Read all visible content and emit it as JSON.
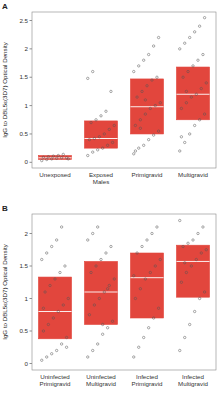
{
  "chart_data": [
    {
      "type": "box",
      "title": "A",
      "y_label": "IgG to DBL5ε(3D7) Optical Density",
      "categories": [
        "Unexposed",
        "Exposed Males",
        "Primigravid",
        "Multigravid"
      ],
      "color": "#e2463d",
      "ylim": [
        -0.1,
        2.65
      ],
      "yticks": [
        0,
        0.5,
        1,
        1.5,
        2,
        2.5
      ],
      "boxes": [
        {
          "q1": 0.05,
          "median": 0.08,
          "q3": 0.12
        },
        {
          "q1": 0.25,
          "median": 0.42,
          "q3": 0.73
        },
        {
          "q1": 0.5,
          "median": 0.98,
          "q3": 1.47
        },
        {
          "q1": 0.75,
          "median": 1.2,
          "q3": 1.68
        }
      ],
      "points": [
        [
          0.03,
          0.05,
          0.06,
          0.07,
          0.08,
          0.08,
          0.09,
          0.1,
          0.11,
          0.12,
          0.14,
          0.06
        ],
        [
          0.12,
          0.18,
          0.22,
          0.25,
          0.3,
          0.35,
          0.4,
          0.42,
          0.45,
          0.5,
          0.58,
          0.65,
          0.7,
          0.75,
          0.82,
          0.9,
          1.25,
          1.48,
          1.6
        ],
        [
          0.15,
          0.25,
          0.3,
          0.4,
          0.48,
          0.55,
          0.65,
          0.75,
          0.85,
          0.95,
          1.0,
          1.05,
          1.15,
          1.25,
          1.35,
          1.45,
          1.5,
          1.6,
          1.7,
          1.8,
          1.9,
          2.05,
          2.2,
          0.2,
          0.6,
          1.1
        ],
        [
          0.2,
          0.35,
          0.5,
          0.65,
          0.75,
          0.85,
          0.95,
          1.05,
          1.15,
          1.2,
          1.3,
          1.4,
          1.5,
          1.6,
          1.7,
          1.8,
          1.9,
          2.0,
          2.1,
          2.2,
          2.3,
          2.4,
          2.55,
          0.45,
          1.25
        ]
      ]
    },
    {
      "type": "box",
      "title": "B",
      "y_label": "IgG to DBL5ε(3D7) Optical Density",
      "categories": [
        "Uninfected Primigravid",
        "Uninfected Multigravid",
        "Infected Primigravid",
        "Infected Multigravid"
      ],
      "color": "#e2463d",
      "ylim": [
        -0.1,
        2.3
      ],
      "yticks": [
        0,
        0.5,
        1,
        1.5,
        2
      ],
      "boxes": [
        {
          "q1": 0.38,
          "median": 0.8,
          "q3": 1.33
        },
        {
          "q1": 0.6,
          "median": 1.1,
          "q3": 1.57
        },
        {
          "q1": 0.7,
          "median": 1.32,
          "q3": 1.7
        },
        {
          "q1": 1.02,
          "median": 1.57,
          "q3": 1.82
        }
      ],
      "points": [
        [
          0.05,
          0.1,
          0.15,
          0.2,
          0.3,
          0.4,
          0.5,
          0.6,
          0.7,
          0.8,
          0.9,
          1.0,
          1.1,
          1.2,
          1.3,
          1.4,
          1.5,
          1.6,
          1.7,
          1.8,
          1.9,
          2.1,
          0.25,
          0.85
        ],
        [
          0.1,
          0.2,
          0.3,
          0.45,
          0.55,
          0.65,
          0.75,
          0.9,
          1.0,
          1.1,
          1.2,
          1.3,
          1.4,
          1.5,
          1.6,
          1.7,
          1.8,
          1.9,
          2.0,
          2.1,
          0.6,
          1.15
        ],
        [
          0.1,
          0.25,
          0.4,
          0.55,
          0.7,
          0.85,
          1.0,
          1.15,
          1.3,
          1.4,
          1.5,
          1.6,
          1.7,
          1.8,
          1.9,
          2.0,
          2.1,
          1.35
        ],
        [
          0.2,
          0.4,
          0.6,
          0.8,
          1.0,
          1.1,
          1.25,
          1.4,
          1.5,
          1.6,
          1.7,
          1.75,
          1.8,
          1.85,
          1.9,
          2.0,
          2.1,
          2.2,
          1.55
        ]
      ]
    }
  ]
}
